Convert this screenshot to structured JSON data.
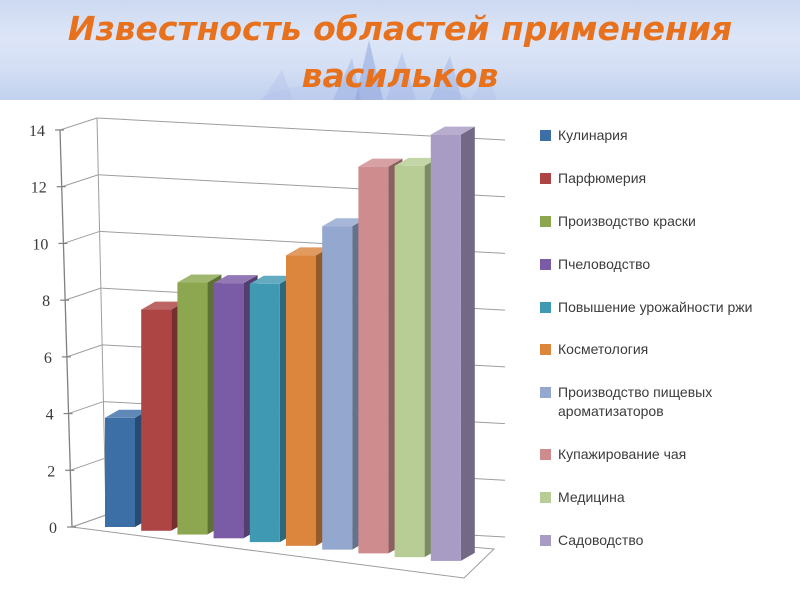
{
  "title": {
    "text": "Известность областей применения васильков",
    "color": "#E7711D"
  },
  "chart_data": {
    "type": "bar",
    "style": "3d-perspective-column",
    "title": "Известность областей применения васильков",
    "categories": [
      "Кулинария",
      "Парфюмерия",
      "Производство краски",
      "Пчеловодство",
      "Повышение урожайности ржи",
      "Косметология",
      "Производство пищевых ароматизаторов",
      "Купажирование чая",
      "Медицина",
      "Садоводство"
    ],
    "values": [
      4,
      8,
      9,
      9,
      9,
      10,
      11,
      13,
      13,
      14
    ],
    "colors": [
      "#3C6FA6",
      "#AC4543",
      "#8CA74F",
      "#7A5BA5",
      "#3F99B2",
      "#DB853D",
      "#94A7CE",
      "#CE8C8F",
      "#B7CD95",
      "#A89BC4"
    ],
    "ylim": [
      0,
      14
    ],
    "yticks": [
      0,
      2,
      4,
      6,
      8,
      10,
      12,
      14
    ],
    "xlabel": "",
    "ylabel": "",
    "grid": true,
    "legend_position": "right",
    "gridline_color": "#9e9e9e",
    "axis_color": "#808080",
    "text_color": "#3c3c3c"
  }
}
